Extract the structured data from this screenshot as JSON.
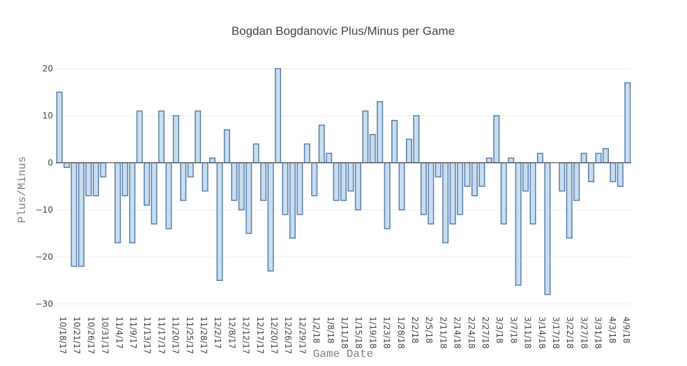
{
  "chart_data": {
    "type": "bar",
    "title": "Bogdan Bogdanovic Plus/Minus per Game",
    "xlabel": "Game Date",
    "ylabel": "Plus/Minus",
    "ylim": [
      -30.6,
      22
    ],
    "yticks": [
      -30,
      -20,
      -10,
      0,
      10,
      20
    ],
    "ytick_labels": [
      "−30",
      "−20",
      "−10",
      "0",
      "10",
      "20"
    ],
    "grid": true,
    "legend": "none",
    "bar_fill": "#c6dff0",
    "bar_line": "#5b7bab",
    "xticks": [
      "10/18/17",
      "10/21/17",
      "10/26/17",
      "10/31/17",
      "11/4/17",
      "11/9/17",
      "11/13/17",
      "11/17/17",
      "11/20/17",
      "11/25/17",
      "11/28/17",
      "12/2/17",
      "12/8/17",
      "12/12/17",
      "12/17/17",
      "12/20/17",
      "12/26/17",
      "12/29/17",
      "1/2/18",
      "1/8/18",
      "1/11/18",
      "1/15/18",
      "1/19/18",
      "1/23/18",
      "1/28/18",
      "2/2/18",
      "2/5/18",
      "2/11/18",
      "2/14/18",
      "2/24/18",
      "2/27/18",
      "3/3/18",
      "3/7/18",
      "3/11/18",
      "3/14/18",
      "3/17/18",
      "3/22/18",
      "3/27/18",
      "3/31/18",
      "4/3/18",
      "4/9/18"
    ],
    "values": [
      15,
      -1,
      -22,
      -22,
      -7,
      -7,
      -3,
      0,
      -17,
      -7,
      -17,
      11,
      -9,
      -13,
      11,
      -14,
      10,
      -8,
      -3,
      11,
      -6,
      1,
      -25,
      7,
      -8,
      -10,
      -15,
      4,
      -8,
      -23,
      20,
      -11,
      -16,
      -11,
      4,
      -7,
      8,
      2,
      -8,
      -8,
      -6,
      -10,
      11,
      6,
      13,
      -14,
      9,
      -10,
      5,
      10,
      -11,
      -13,
      -3,
      -17,
      -13,
      -11,
      -5,
      -7,
      -5,
      1,
      10,
      -13,
      1,
      -26,
      -6,
      -13,
      2,
      -28,
      0,
      -6,
      -16,
      -8,
      2,
      -4,
      2,
      3,
      -4,
      -5,
      17
    ]
  }
}
